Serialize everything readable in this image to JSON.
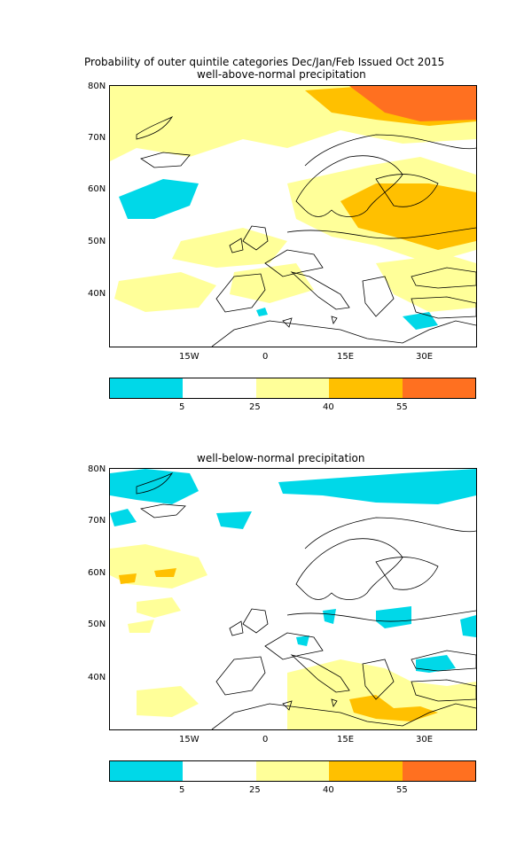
{
  "header": {
    "title": "Probability of outer quintile categories Dec/Jan/Feb Issued Oct 2015"
  },
  "panels": [
    {
      "subtitle": "well-above-normal precipitation",
      "lat_labels": [
        "80N",
        "70N",
        "60N",
        "50N",
        "40N"
      ],
      "lon_labels": [
        "15W",
        "0",
        "15E",
        "30E"
      ]
    },
    {
      "subtitle": "well-below-normal precipitation",
      "lat_labels": [
        "80N",
        "70N",
        "60N",
        "50N",
        "40N"
      ],
      "lon_labels": [
        "15W",
        "0",
        "15E",
        "30E"
      ]
    }
  ],
  "colorbar": {
    "ticks": [
      "5",
      "25",
      "40",
      "55"
    ],
    "colors": [
      "#00d8e8",
      "#ffffff",
      "#ffff99",
      "#ffc000",
      "#ff7020"
    ]
  }
}
